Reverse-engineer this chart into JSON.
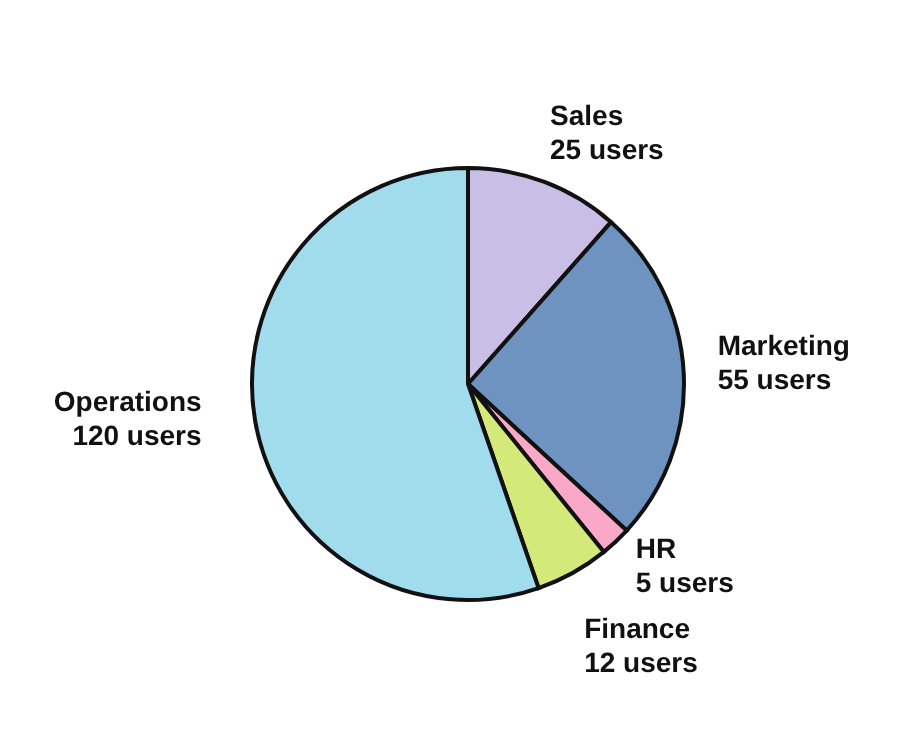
{
  "chart_data": {
    "type": "pie",
    "categories": [
      "Sales",
      "Marketing",
      "HR",
      "Finance",
      "Operations"
    ],
    "values": [
      25,
      55,
      5,
      12,
      120
    ],
    "value_labels": [
      "25 users",
      "55 users",
      "5 users",
      "12 users",
      "120 users"
    ],
    "colors": [
      "#c9bfe6",
      "#6f93c0",
      "#f9a8c8",
      "#d4e97a",
      "#a0dcec"
    ],
    "legend": false
  }
}
